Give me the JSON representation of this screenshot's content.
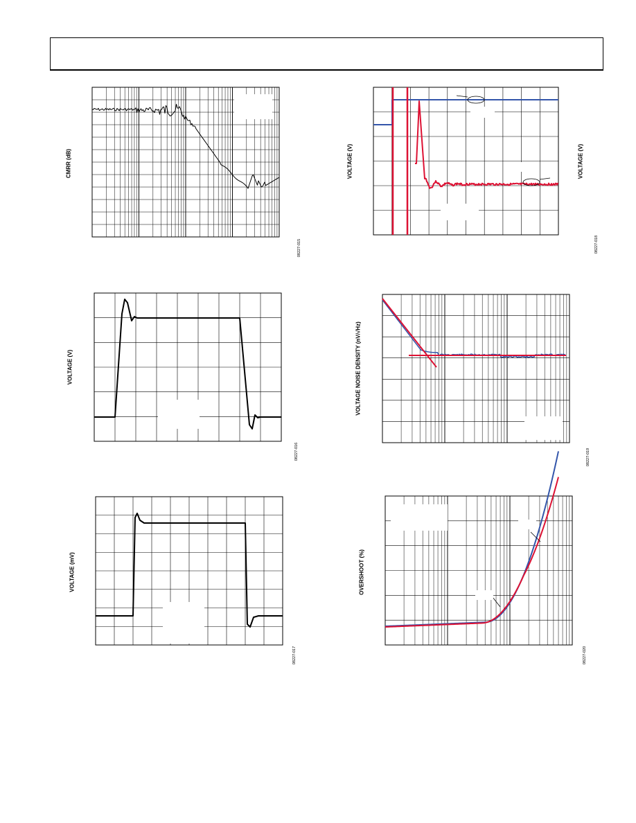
{
  "page": {
    "header": ""
  },
  "chart_data": [
    {
      "type": "line",
      "ylabel": "CMRR (dB)",
      "x_scale": "log",
      "grid": true,
      "code": "08227-015",
      "series": [
        {
          "color": "#000000",
          "description": "CMRR vs frequency"
        }
      ]
    },
    {
      "type": "line",
      "ylabel": "VOLTAGE (V)",
      "ylabel_right": "VOLTAGE (V)",
      "grid": true,
      "code": "08227-018",
      "series": [
        {
          "color": "#3355aa"
        },
        {
          "color": "#dd1133"
        }
      ]
    },
    {
      "type": "line",
      "ylabel": "VOLTAGE (V)",
      "grid": true,
      "code": "08227-016",
      "series": [
        {
          "color": "#000000"
        }
      ]
    },
    {
      "type": "line",
      "ylabel": "VOLTAGE NOISE DENSITY (nV/√Hz)",
      "x_scale": "log",
      "grid": true,
      "code": "08227-019",
      "series": [
        {
          "color": "#3355aa"
        },
        {
          "color": "#dd1133"
        }
      ]
    },
    {
      "type": "line",
      "ylabel": "VOLTAGE (mV)",
      "grid": true,
      "code": "08227-017",
      "series": [
        {
          "color": "#000000"
        }
      ]
    },
    {
      "type": "line",
      "ylabel": "OVERSHOOT (%)",
      "x_scale": "log",
      "grid": true,
      "code": "08227-020",
      "series": [
        {
          "color": "#3355aa"
        },
        {
          "color": "#dd1133"
        }
      ]
    }
  ]
}
